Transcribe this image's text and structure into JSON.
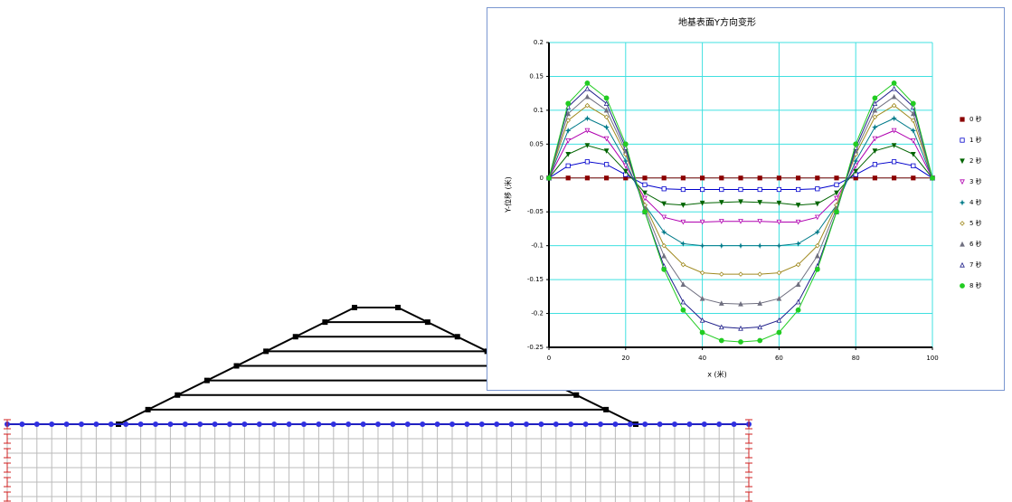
{
  "chart_data": {
    "type": "line",
    "title": "地基表面Y方向变形",
    "xlabel": "x (米)",
    "ylabel": "Y-位移 (米)",
    "x": [
      0,
      5,
      10,
      15,
      20,
      25,
      30,
      35,
      40,
      45,
      50,
      55,
      60,
      65,
      70,
      75,
      80,
      85,
      90,
      95,
      100
    ],
    "xlim": [
      0,
      100
    ],
    "xticks": [
      0,
      20,
      40,
      60,
      80,
      100
    ],
    "ylim": [
      -0.25,
      0.2
    ],
    "yticks": [
      0.2,
      0.15,
      0.1,
      0.05,
      0,
      -0.05,
      -0.1,
      -0.15,
      -0.2,
      -0.25
    ],
    "grid": true,
    "legend": "right",
    "series": [
      {
        "name": "0 秒",
        "color": "#8b0000",
        "marker": "square",
        "filled": true,
        "values": [
          0,
          0,
          0,
          0,
          0,
          0,
          0,
          0,
          0,
          0,
          0,
          0,
          0,
          0,
          0,
          0,
          0,
          0,
          0,
          0,
          0
        ]
      },
      {
        "name": "1 秒",
        "color": "#0000cc",
        "marker": "square",
        "filled": false,
        "values": [
          0,
          0.018,
          0.024,
          0.02,
          0.005,
          -0.01,
          -0.016,
          -0.017,
          -0.017,
          -0.017,
          -0.017,
          -0.017,
          -0.017,
          -0.017,
          -0.016,
          -0.01,
          0.005,
          0.02,
          0.024,
          0.018,
          0
        ]
      },
      {
        "name": "2 秒",
        "color": "#006400",
        "marker": "tri-down",
        "filled": true,
        "values": [
          0,
          0.035,
          0.048,
          0.04,
          0.01,
          -0.022,
          -0.038,
          -0.04,
          -0.037,
          -0.036,
          -0.035,
          -0.036,
          -0.037,
          -0.04,
          -0.038,
          -0.022,
          0.01,
          0.04,
          0.048,
          0.035,
          0
        ]
      },
      {
        "name": "3 秒",
        "color": "#b000b0",
        "marker": "tri-down",
        "filled": false,
        "values": [
          0,
          0.055,
          0.07,
          0.058,
          0.018,
          -0.03,
          -0.058,
          -0.065,
          -0.065,
          -0.064,
          -0.064,
          -0.064,
          -0.065,
          -0.065,
          -0.058,
          -0.03,
          0.018,
          0.058,
          0.07,
          0.055,
          0
        ]
      },
      {
        "name": "4 秒",
        "color": "#007b8a",
        "marker": "star",
        "filled": true,
        "values": [
          0,
          0.07,
          0.088,
          0.075,
          0.025,
          -0.04,
          -0.08,
          -0.097,
          -0.1,
          -0.1,
          -0.1,
          -0.1,
          -0.1,
          -0.097,
          -0.08,
          -0.04,
          0.025,
          0.075,
          0.088,
          0.07,
          0
        ]
      },
      {
        "name": "5 秒",
        "color": "#a08a20",
        "marker": "diamond",
        "filled": false,
        "values": [
          0,
          0.085,
          0.107,
          0.09,
          0.035,
          -0.04,
          -0.1,
          -0.128,
          -0.14,
          -0.142,
          -0.142,
          -0.142,
          -0.14,
          -0.128,
          -0.1,
          -0.04,
          0.035,
          0.09,
          0.107,
          0.085,
          0
        ]
      },
      {
        "name": "6 秒",
        "color": "#707080",
        "marker": "tri-up",
        "filled": true,
        "values": [
          0,
          0.095,
          0.12,
          0.1,
          0.04,
          -0.045,
          -0.115,
          -0.157,
          -0.178,
          -0.185,
          -0.186,
          -0.185,
          -0.178,
          -0.157,
          -0.115,
          -0.045,
          0.04,
          0.1,
          0.12,
          0.095,
          0
        ]
      },
      {
        "name": "7 秒",
        "color": "#20208a",
        "marker": "tri-up",
        "filled": false,
        "values": [
          0,
          0.105,
          0.132,
          0.11,
          0.045,
          -0.05,
          -0.13,
          -0.183,
          -0.21,
          -0.22,
          -0.222,
          -0.22,
          -0.21,
          -0.183,
          -0.13,
          -0.05,
          0.045,
          0.11,
          0.132,
          0.105,
          0
        ]
      },
      {
        "name": "8 秒",
        "color": "#22cc22",
        "marker": "circle",
        "filled": true,
        "values": [
          0,
          0.11,
          0.14,
          0.118,
          0.05,
          -0.05,
          -0.135,
          -0.195,
          -0.228,
          -0.24,
          -0.242,
          -0.24,
          -0.228,
          -0.195,
          -0.135,
          -0.05,
          0.05,
          0.118,
          0.14,
          0.11,
          0
        ]
      }
    ]
  }
}
